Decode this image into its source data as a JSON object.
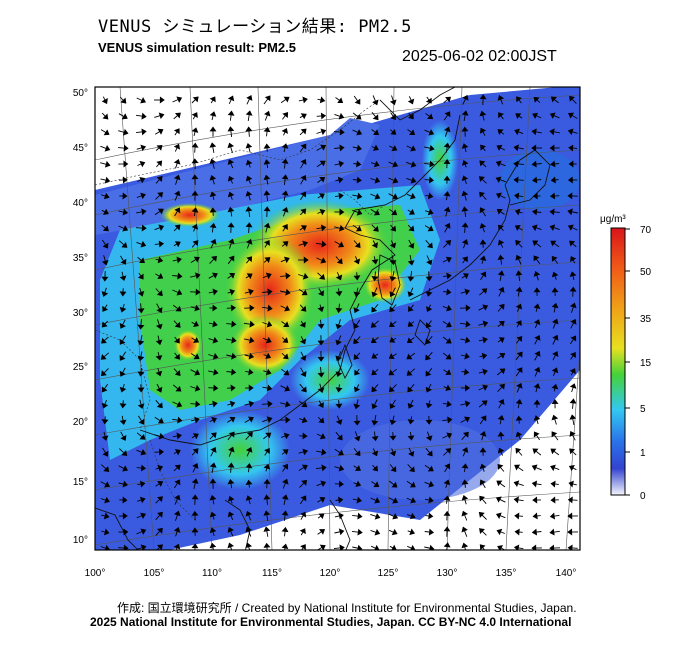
{
  "header": {
    "title_jp": "VENUS シミュレーション結果: PM2.5",
    "title_en": "VENUS simulation result: PM2.5",
    "timestamp": "2025-06-02 02:00JST"
  },
  "map": {
    "lat_labels": [
      "50°",
      "45°",
      "40°",
      "35°",
      "30°",
      "25°",
      "20°",
      "15°",
      "10°"
    ],
    "lon_labels": [
      "100°",
      "105°",
      "110°",
      "115°",
      "120°",
      "125°",
      "130°",
      "135°",
      "140°"
    ],
    "colors": {
      "low": "#dde6f6",
      "blue": "#3355dd",
      "cyan": "#33c8f0",
      "green": "#44d23a",
      "yellow": "#e8e020",
      "orange": "#f08a18",
      "red": "#e8261a"
    }
  },
  "colorbar": {
    "unit": "μg/m³",
    "labels": [
      "70",
      "50",
      "35",
      "15",
      "5",
      "1",
      "0"
    ]
  },
  "footer": {
    "credit": "作成: 国立環境研究所 / Created by National Institute for Environmental Studies, Japan.",
    "copyright": "2025 National Institute for Environmental Studies, Japan. CC BY-NC 4.0 International"
  }
}
